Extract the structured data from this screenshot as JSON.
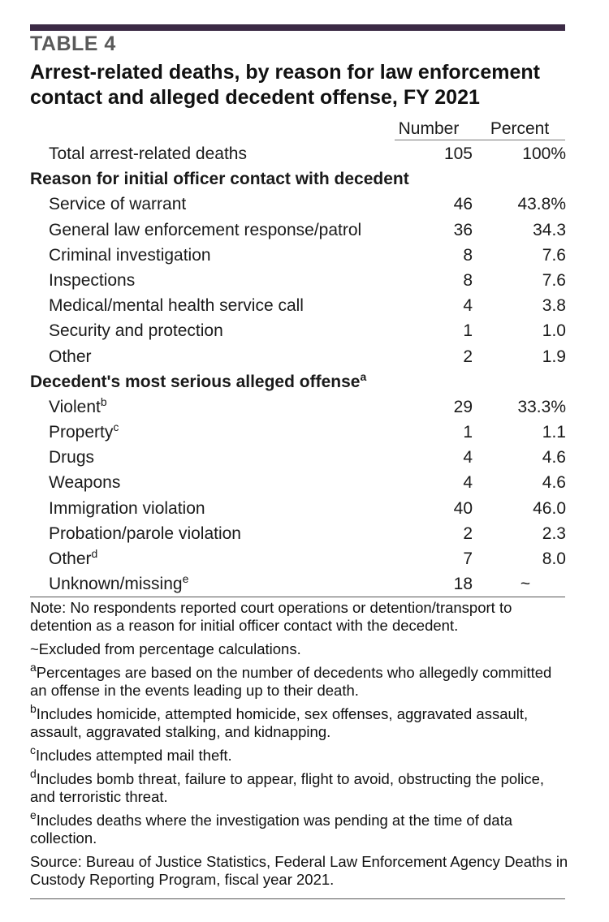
{
  "table_label": "TABLE 4",
  "title": "Arrest-related deaths, by reason for law enforcement contact and alleged decedent offense, FY 2021",
  "columns": {
    "number": "Number",
    "percent": "Percent"
  },
  "rows": [
    {
      "label": "Total arrest-related deaths",
      "sup": "",
      "number": "105",
      "percent": "100%",
      "type": "indent"
    },
    {
      "label": "Reason for initial officer contact with decedent",
      "sup": "",
      "number": "",
      "percent": "",
      "type": "section"
    },
    {
      "label": "Service of warrant",
      "sup": "",
      "number": "46",
      "percent": "43.8%",
      "type": "indent"
    },
    {
      "label": "General law enforcement response/patrol",
      "sup": "",
      "number": "36",
      "percent": "34.3",
      "type": "indent"
    },
    {
      "label": "Criminal investigation",
      "sup": "",
      "number": "8",
      "percent": "7.6",
      "type": "indent"
    },
    {
      "label": "Inspections",
      "sup": "",
      "number": "8",
      "percent": "7.6",
      "type": "indent"
    },
    {
      "label": "Medical/mental health service call",
      "sup": "",
      "number": "4",
      "percent": "3.8",
      "type": "indent"
    },
    {
      "label": "Security and protection",
      "sup": "",
      "number": "1",
      "percent": "1.0",
      "type": "indent"
    },
    {
      "label": "Other",
      "sup": "",
      "number": "2",
      "percent": "1.9",
      "type": "indent"
    },
    {
      "label": "Decedent's most serious alleged offense",
      "sup": "a",
      "number": "",
      "percent": "",
      "type": "section"
    },
    {
      "label": "Violent",
      "sup": "b",
      "number": "29",
      "percent": "33.3%",
      "type": "indent"
    },
    {
      "label": "Property",
      "sup": "c",
      "number": "1",
      "percent": "1.1",
      "type": "indent"
    },
    {
      "label": "Drugs",
      "sup": "",
      "number": "4",
      "percent": "4.6",
      "type": "indent"
    },
    {
      "label": "Weapons",
      "sup": "",
      "number": "4",
      "percent": "4.6",
      "type": "indent"
    },
    {
      "label": "Immigration violation",
      "sup": "",
      "number": "40",
      "percent": "46.0",
      "type": "indent"
    },
    {
      "label": "Probation/parole violation",
      "sup": "",
      "number": "2",
      "percent": "2.3",
      "type": "indent"
    },
    {
      "label": "Other",
      "sup": "d",
      "number": "7",
      "percent": "8.0",
      "type": "indent"
    },
    {
      "label": "Unknown/missing",
      "sup": "e",
      "number": "18",
      "percent": "~",
      "type": "indent"
    }
  ],
  "notes": [
    {
      "sup": "",
      "text": "Note: No respondents reported court operations or detention/transport to detention as a reason for initial officer contact with the decedent."
    },
    {
      "sup": "",
      "text": "~Excluded from percentage calculations."
    },
    {
      "sup": "a",
      "text": "Percentages are based on the number of decedents who allegedly committed an offense in the events leading up to their death."
    },
    {
      "sup": "b",
      "text": "Includes homicide, attempted homicide, sex offenses, aggravated assault, assault, aggravated stalking, and kidnapping."
    },
    {
      "sup": "c",
      "text": "Includes attempted mail theft."
    },
    {
      "sup": "d",
      "text": "Includes bomb threat, failure to appear, flight to avoid, obstructing the police, and terroristic threat."
    },
    {
      "sup": "e",
      "text": "Includes deaths where the investigation was pending at the time of data collection."
    },
    {
      "sup": "",
      "text": "Source: Bureau of Justice Statistics, Federal Law Enforcement Agency Deaths in Custody Reporting Program, fiscal year 2021."
    }
  ]
}
